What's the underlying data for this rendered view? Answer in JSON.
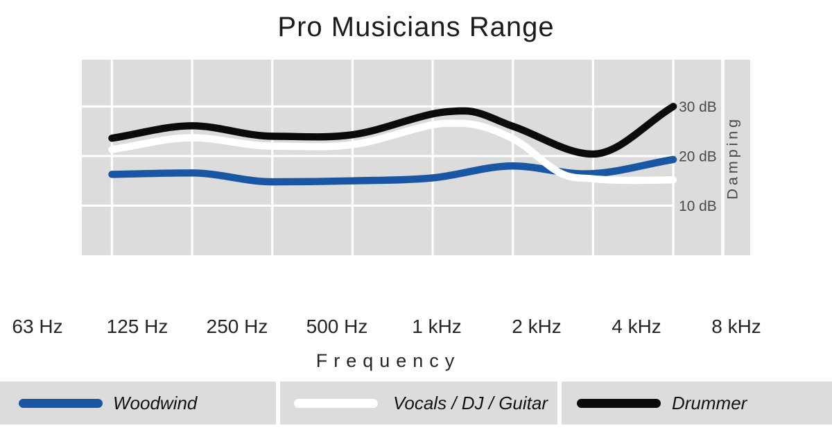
{
  "title": "Pro Musicians Range",
  "chart_data": {
    "type": "line",
    "title": "Pro Musicians Range",
    "xlabel": "Frequency",
    "ylabel": "Damping",
    "grid": true,
    "legend_position": "bottom",
    "background": "#dcdcdc",
    "grid_color": "#ffffff",
    "axis_text_color": "#4c4844",
    "tick_text_color": "#242424",
    "x_axis": {
      "label": "Frequency",
      "categories": [
        "63 Hz",
        "125 Hz",
        "250 Hz",
        "500 Hz",
        "1 kHz",
        "2 kHz",
        "4 kHz",
        "8 kHz"
      ]
    },
    "y_axis": {
      "label": "Damping",
      "unit": "dB",
      "ticks": [
        "10 dB",
        "20 dB",
        "30 dB"
      ],
      "tick_values": [
        10,
        20,
        30
      ],
      "range": [
        0,
        39.5
      ]
    },
    "series": [
      {
        "name": "Woodwind",
        "color": "#1956a4",
        "values": [
          16.3,
          16.6,
          14.8,
          15.0,
          15.6,
          18.0,
          16.7,
          19.3
        ],
        "shape_points": [
          [
            0,
            16.3
          ],
          [
            1,
            16.6
          ],
          [
            2,
            14.8
          ],
          [
            3,
            15.0
          ],
          [
            4,
            15.6
          ],
          [
            5,
            18.0
          ],
          [
            5.9,
            16.4
          ],
          [
            7,
            19.3
          ]
        ]
      },
      {
        "name": "Vocals / DJ / Guitar",
        "color": "#ffffff",
        "values": [
          21.3,
          23.7,
          22.0,
          22.3,
          26.3,
          23.5,
          15.4,
          15.2
        ],
        "shape_points": [
          [
            0,
            21.3
          ],
          [
            1,
            23.7
          ],
          [
            2,
            22.0
          ],
          [
            3,
            22.3
          ],
          [
            4,
            26.3
          ],
          [
            4.35,
            26.6
          ],
          [
            5,
            23.5
          ],
          [
            5.6,
            16.5
          ],
          [
            6,
            15.4
          ],
          [
            6.5,
            15.1
          ],
          [
            7,
            15.2
          ]
        ]
      },
      {
        "name": "Drummer",
        "color": "#0b0b0b",
        "values": [
          23.6,
          26.1,
          24.0,
          24.3,
          28.5,
          26.0,
          20.4,
          30.0
        ],
        "shape_points": [
          [
            0,
            23.6
          ],
          [
            1,
            26.1
          ],
          [
            2,
            24.0
          ],
          [
            3,
            24.3
          ],
          [
            4,
            28.5
          ],
          [
            4.4,
            29.1
          ],
          [
            5,
            26.0
          ],
          [
            6,
            20.4
          ],
          [
            7,
            30.0
          ]
        ]
      }
    ]
  },
  "legend": {
    "items": [
      "Woodwind",
      "Vocals / DJ / Guitar",
      "Drummer"
    ]
  }
}
